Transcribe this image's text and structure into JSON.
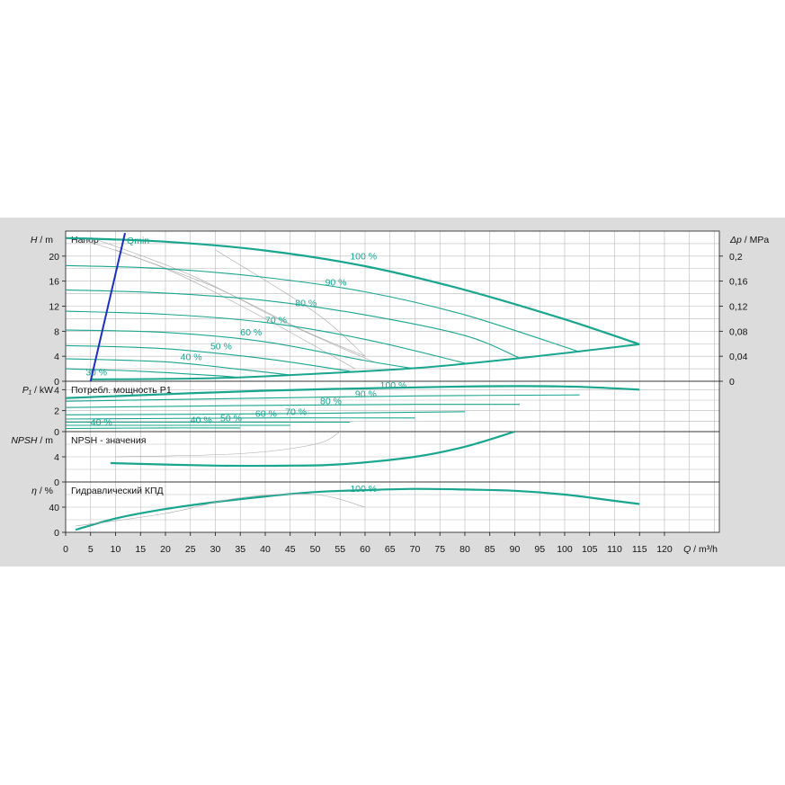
{
  "chart_data": {
    "type": "line",
    "x_axis": {
      "label_symbol": "Q",
      "label_unit": " / m³/h",
      "range": [
        0,
        131
      ],
      "ticks": [
        0,
        5,
        10,
        15,
        20,
        25,
        30,
        35,
        40,
        45,
        50,
        55,
        60,
        65,
        70,
        75,
        80,
        85,
        90,
        95,
        100,
        105,
        110,
        115,
        120
      ]
    },
    "right_axis": {
      "label_symbol": "Δp",
      "label_unit": " / MPa",
      "ticks": [
        {
          "v": 0,
          "t": "0"
        },
        {
          "v": 4,
          "t": "0,04"
        },
        {
          "v": 8,
          "t": "0,08"
        },
        {
          "v": 12,
          "t": "0,12"
        },
        {
          "v": 16,
          "t": "0,16"
        },
        {
          "v": 20,
          "t": "0,2"
        }
      ]
    },
    "panels": [
      {
        "id": "head",
        "title": "Напор",
        "ylabel_symbol": "H",
        "ylabel_unit": " / m",
        "ylim": [
          0,
          24
        ],
        "yticks": [
          0,
          4,
          8,
          12,
          16,
          20
        ],
        "curves": [
          {
            "label": "100 %",
            "points": [
              [
                0,
                22.9
              ],
              [
                20,
                22.3
              ],
              [
                40,
                20.9
              ],
              [
                60,
                18.4
              ],
              [
                80,
                14.6
              ],
              [
                100,
                9.9
              ],
              [
                115,
                5.9
              ]
            ],
            "bold": true,
            "label_at": [
              57,
              19.5
            ]
          },
          {
            "label": "90 %",
            "points": [
              [
                0,
                18.5
              ],
              [
                20,
                18.0
              ],
              [
                40,
                16.6
              ],
              [
                60,
                14.3
              ],
              [
                80,
                10.6
              ],
              [
                103,
                4.7
              ]
            ],
            "label_at": [
              52,
              15.3
            ]
          },
          {
            "label": "80 %",
            "points": [
              [
                0,
                14.6
              ],
              [
                20,
                14.1
              ],
              [
                40,
                12.9
              ],
              [
                60,
                10.6
              ],
              [
                80,
                7.3
              ],
              [
                91,
                3.7
              ]
            ],
            "label_at": [
              46,
              12.0
            ]
          },
          {
            "label": "70 %",
            "points": [
              [
                0,
                11.2
              ],
              [
                20,
                10.7
              ],
              [
                40,
                9.4
              ],
              [
                60,
                6.7
              ],
              [
                80,
                2.9
              ]
            ],
            "label_at": [
              40,
              9.3
            ]
          },
          {
            "label": "60 %",
            "points": [
              [
                0,
                8.2
              ],
              [
                20,
                7.8
              ],
              [
                40,
                6.3
              ],
              [
                60,
                3.3
              ],
              [
                70,
                2.0
              ]
            ],
            "label_at": [
              35,
              7.3
            ]
          },
          {
            "label": "50 %",
            "points": [
              [
                0,
                5.7
              ],
              [
                20,
                5.2
              ],
              [
                40,
                3.6
              ],
              [
                57,
                1.6
              ]
            ],
            "label_at": [
              29,
              5.1
            ]
          },
          {
            "label": "40 %",
            "points": [
              [
                0,
                3.6
              ],
              [
                20,
                3.1
              ],
              [
                35,
                1.9
              ],
              [
                45,
                1.0
              ]
            ],
            "label_at": [
              23,
              3.4
            ]
          },
          {
            "label": "30 %",
            "points": [
              [
                0,
                2.0
              ],
              [
                15,
                1.6
              ],
              [
                30,
                0.9
              ],
              [
                35,
                0.6
              ]
            ],
            "label_at": [
              4,
              0.9
            ]
          }
        ],
        "max_curve": {
          "points": [
            [
              5,
              0.3
            ],
            [
              30,
              0.5
            ],
            [
              50,
              1.2
            ],
            [
              70,
              2.1
            ],
            [
              90,
              3.6
            ],
            [
              115,
              5.9
            ]
          ]
        },
        "qmin_line": {
          "label": "Qmin",
          "points": [
            [
              5,
              0
            ],
            [
              11.9,
              23.7
            ]
          ]
        }
      },
      {
        "id": "power",
        "title": "Потребл. мощность P1",
        "ylabel_symbol": "P₁",
        "ylabel_unit": " / kW",
        "ylim": [
          0,
          4.8
        ],
        "yticks": [
          0,
          2,
          4
        ],
        "curves": [
          {
            "label": "100 %",
            "points": [
              [
                0,
                3.2
              ],
              [
                40,
                3.9
              ],
              [
                80,
                4.3
              ],
              [
                100,
                4.3
              ],
              [
                115,
                4.0
              ]
            ],
            "bold": true,
            "label_at": [
              63,
              4.1
            ]
          },
          {
            "label": "90 %",
            "points": [
              [
                0,
                2.9
              ],
              [
                40,
                3.2
              ],
              [
                70,
                3.4
              ],
              [
                103,
                3.5
              ]
            ],
            "label_at": [
              58,
              3.3
            ]
          },
          {
            "label": "80 %",
            "points": [
              [
                0,
                2.3
              ],
              [
                40,
                2.5
              ],
              [
                70,
                2.6
              ],
              [
                91,
                2.6
              ]
            ],
            "label_at": [
              51,
              2.6
            ]
          },
          {
            "label": "70 %",
            "points": [
              [
                0,
                1.6
              ],
              [
                40,
                1.7
              ],
              [
                80,
                1.9
              ]
            ],
            "label_at": [
              44,
              1.6
            ]
          },
          {
            "label": "60 %",
            "points": [
              [
                0,
                1.2
              ],
              [
                40,
                1.3
              ],
              [
                70,
                1.3
              ]
            ],
            "label_at": [
              38,
              1.4
            ]
          },
          {
            "label": "50 %",
            "points": [
              [
                0,
                0.9
              ],
              [
                30,
                0.9
              ],
              [
                57,
                0.9
              ]
            ],
            "label_at": [
              31,
              1.0
            ]
          },
          {
            "label": "40 %",
            "points": [
              [
                0,
                0.6
              ],
              [
                25,
                0.6
              ],
              [
                45,
                0.6
              ]
            ],
            "label_at": [
              25,
              0.8
            ]
          },
          {
            "label": "40 %",
            "points": [
              [
                0,
                0.3
              ],
              [
                20,
                0.35
              ],
              [
                35,
                0.35
              ]
            ],
            "label_at": [
              5,
              0.6
            ]
          }
        ]
      },
      {
        "id": "npsh",
        "title": "NPSH - значения",
        "ylabel_symbol": "NPSH",
        "ylabel_unit": " / m",
        "ylim": [
          0,
          8
        ],
        "yticks": [
          0,
          4
        ],
        "curves": [
          {
            "label": "",
            "points": [
              [
                9,
                3.0
              ],
              [
                30,
                2.6
              ],
              [
                45,
                2.6
              ],
              [
                55,
                2.8
              ],
              [
                70,
                4.0
              ],
              [
                80,
                5.6
              ],
              [
                90,
                8.0
              ]
            ],
            "bold": true
          }
        ]
      },
      {
        "id": "eff",
        "title": "Гидравлический КПД",
        "ylabel_symbol": "η",
        "ylabel_unit": " / %",
        "ylim": [
          0,
          80
        ],
        "yticks": [
          0,
          40
        ],
        "curves": [
          {
            "label": "100 %",
            "points": [
              [
                2,
                4
              ],
              [
                10,
                22
              ],
              [
                20,
                37
              ],
              [
                30,
                48
              ],
              [
                40,
                57
              ],
              [
                50,
                64
              ],
              [
                60,
                67
              ],
              [
                70,
                69
              ],
              [
                80,
                68
              ],
              [
                90,
                66
              ],
              [
                100,
                60
              ],
              [
                110,
                50
              ],
              [
                115,
                45
              ]
            ],
            "bold": true,
            "label_at": [
              57,
              64
            ]
          }
        ]
      }
    ]
  }
}
